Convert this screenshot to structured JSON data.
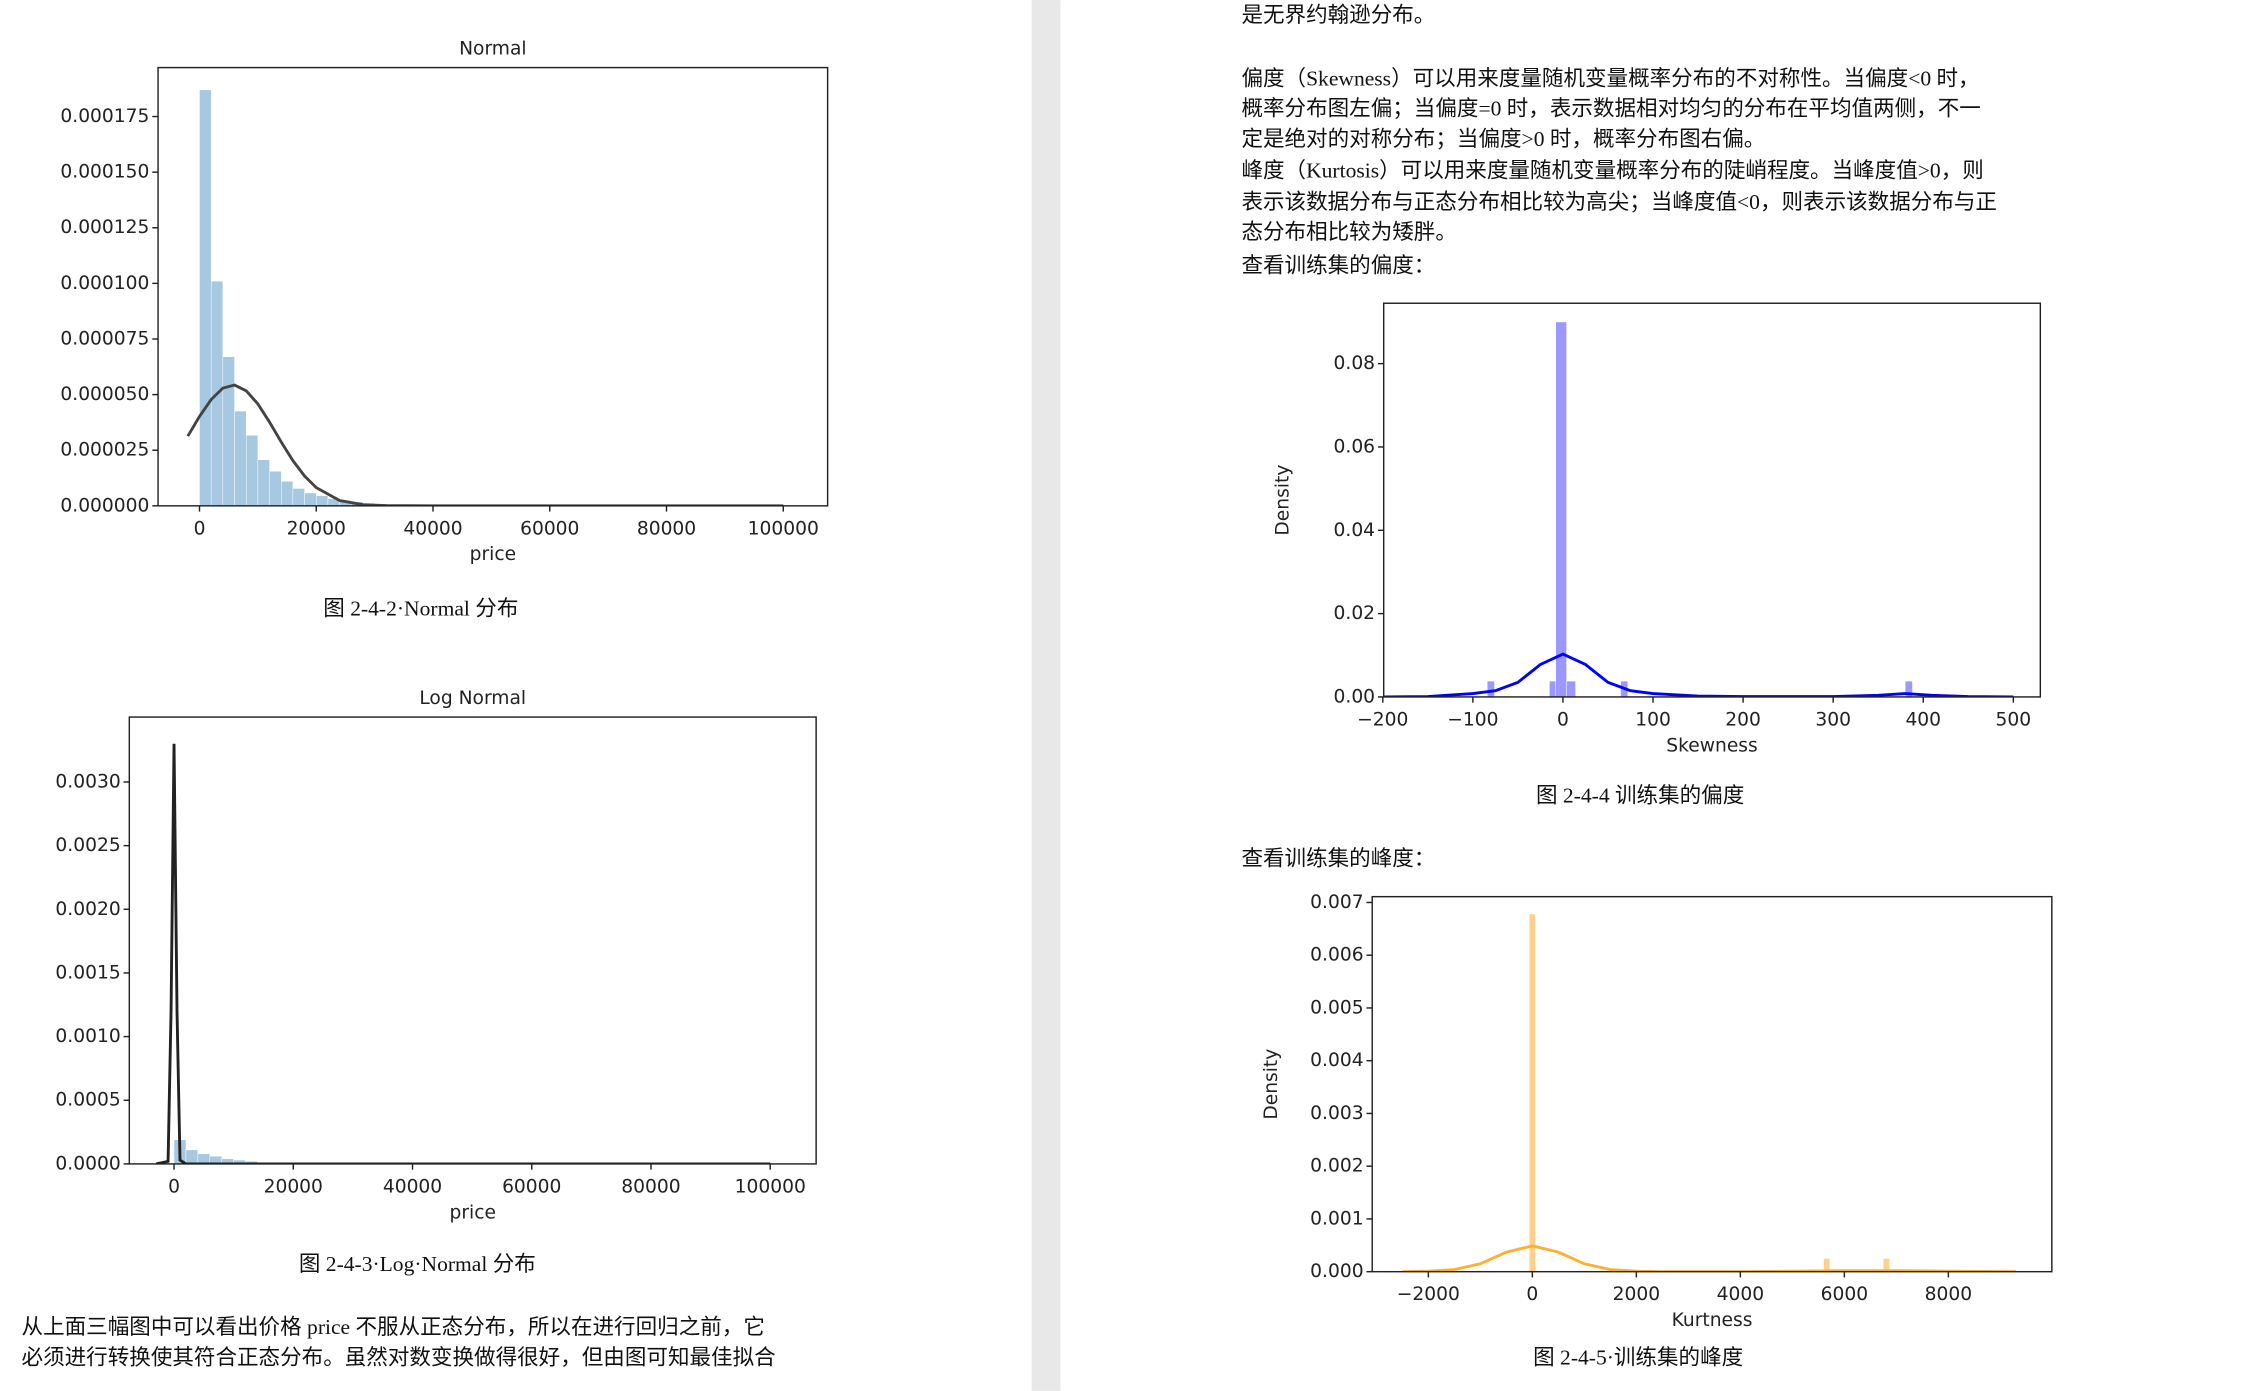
{
  "left_page": {
    "caption_1": "图 2-4-2·Normal 分布",
    "caption_2": "图 2-4-3·Log·Normal 分布",
    "paragraph": [
      "从上面三幅图中可以看出价格 price 不服从正态分布，所以在进行回归之前，它",
      "必须进行转换使其符合正态分布。虽然对数变换做得很好，但由图可知最佳拟合"
    ]
  },
  "right_page": {
    "intro": "是无界约翰逊分布。",
    "paragraph": [
      "偏度（Skewness）可以用来度量随机变量概率分布的不对称性。当偏度<0 时，",
      "概率分布图左偏；当偏度=0 时，表示数据相对均匀的分布在平均值两侧，不一",
      "定是绝对的对称分布；当偏度>0 时，概率分布图右偏。",
      "峰度（Kurtosis）可以用来度量随机变量概率分布的陡峭程度。当峰度值>0，则",
      "表示该数据分布与正态分布相比较为高尖；当峰度值<0，则表示该数据分布与正",
      "态分布相比较为矮胖。",
      "查看训练集的偏度："
    ],
    "caption_1": "图 2-4-4 训练集的偏度",
    "kurtosis_intro": "查看训练集的峰度：",
    "caption_2": "图 2-4-5·训练集的峰度"
  },
  "chart_data": [
    {
      "type": "histogram",
      "title": "Normal",
      "x_label": "price",
      "bins": [
        0,
        2000,
        4000,
        6000,
        8000,
        10000,
        12000,
        14000,
        16000,
        18000,
        20000,
        22000,
        24000,
        26000,
        28000,
        30000,
        32000
      ],
      "values": [
        0.000187,
        0.000101,
        6.7e-05,
        4.26e-05,
        3.17e-05,
        2.07e-05,
        1.55e-05,
        1.1e-05,
        7.8e-06,
        5.8e-06,
        4.5e-06,
        3.2e-06,
        2.4e-06,
        1.8e-06,
        1.2e-06,
        8e-07
      ],
      "color": "#a6c8e0",
      "curve": {
        "x": [
          -2000,
          0,
          2000,
          4000,
          6000,
          8000,
          10000,
          12000,
          14000,
          16000,
          18000,
          20000,
          24000,
          28000,
          32000,
          40000,
          60000,
          80000,
          100000
        ],
        "values": [
          3.13e-05,
          4.02e-05,
          4.78e-05,
          5.29e-05,
          5.43e-05,
          5.17e-05,
          4.58e-05,
          3.76e-05,
          2.87e-05,
          2.03e-05,
          1.34e-05,
          8.2e-06,
          2.4e-06,
          5e-07,
          1e-07,
          0,
          0,
          0,
          0
        ],
        "color": "#444444"
      },
      "xlim": [
        -7100,
        107600
      ],
      "ylim": [
        0,
        0.000197
      ],
      "xticks": [
        0,
        20000,
        40000,
        60000,
        80000,
        100000
      ],
      "yticks": [
        {
          "value": 0,
          "label": "0.000000"
        },
        {
          "value": 2.5e-05,
          "label": "0.000025"
        },
        {
          "value": 5e-05,
          "label": "0.000050"
        },
        {
          "value": 7.5e-05,
          "label": "0.000075"
        },
        {
          "value": 0.0001,
          "label": "0.000100"
        },
        {
          "value": 0.000125,
          "label": "0.000125"
        },
        {
          "value": 0.00015,
          "label": "0.000150"
        },
        {
          "value": 0.000175,
          "label": "0.000175"
        }
      ]
    },
    {
      "type": "histogram",
      "title": "Log Normal",
      "x_label": "price",
      "bins": [
        0,
        2000,
        4000,
        6000,
        8000,
        10000,
        12000,
        14000,
        16000
      ],
      "values": [
        0.00019,
        0.00011,
        8e-05,
        6e-05,
        4e-05,
        3e-05,
        2e-05,
        1e-05
      ],
      "color": "#a6c8e0",
      "curve": {
        "x": [
          -3000,
          -1000,
          -500,
          0,
          500,
          1000,
          2000,
          5000,
          20000,
          100000
        ],
        "values": [
          0,
          2e-05,
          0.0012,
          0.0033,
          0.0012,
          3e-05,
          0,
          0,
          0,
          0
        ],
        "color": "#222222"
      },
      "xlim": [
        -7500,
        107700
      ],
      "ylim": [
        0,
        0.00351
      ],
      "xticks": [
        0,
        20000,
        40000,
        60000,
        80000,
        100000
      ],
      "yticks": [
        {
          "value": 0,
          "label": "0.0000"
        },
        {
          "value": 0.0005,
          "label": "0.0005"
        },
        {
          "value": 0.001,
          "label": "0.0010"
        },
        {
          "value": 0.0015,
          "label": "0.0015"
        },
        {
          "value": 0.002,
          "label": "0.0020"
        },
        {
          "value": 0.0025,
          "label": "0.0025"
        },
        {
          "value": 0.003,
          "label": "0.0030"
        }
      ]
    },
    {
      "type": "histogram",
      "x_label": "Skewness",
      "y_label": "Density",
      "bins": [
        -84,
        -76,
        -15,
        -8,
        4,
        14,
        64,
        72,
        380,
        388
      ],
      "values": [
        0.0038,
        0,
        0.0038,
        0.09,
        0.0038,
        0,
        0.0038,
        0,
        0.0038
      ],
      "color": "#9999ff",
      "curve": {
        "x": [
          -200,
          -150,
          -100,
          -75,
          -50,
          -25,
          0,
          25,
          50,
          75,
          100,
          150,
          200,
          300,
          350,
          380,
          410,
          450,
          500
        ],
        "values": [
          0,
          0.0001,
          0.0008,
          0.0015,
          0.0035,
          0.0078,
          0.0103,
          0.0078,
          0.0035,
          0.0015,
          0.0008,
          0.0002,
          0.0001,
          0.0001,
          0.0004,
          0.0008,
          0.0004,
          0.0001,
          0
        ],
        "color": "#0000ff"
      },
      "xlim": [
        -199,
        530
      ],
      "ylim": [
        0,
        0.0945
      ],
      "xticks": [
        {
          "value": -200,
          "label": "−200"
        },
        {
          "value": -100,
          "label": "−100"
        },
        0,
        100,
        200,
        300,
        400,
        500
      ],
      "yticks": [
        {
          "value": 0,
          "label": "0.00"
        },
        {
          "value": 0.02,
          "label": "0.02"
        },
        {
          "value": 0.04,
          "label": "0.04"
        },
        {
          "value": 0.06,
          "label": "0.06"
        },
        {
          "value": 0.08,
          "label": "0.08"
        }
      ]
    },
    {
      "type": "histogram",
      "x_label": "Kurtness",
      "y_label": "Density",
      "bins": [
        -60,
        60,
        5600,
        5720,
        6750,
        6870
      ],
      "values": [
        0.00678,
        0,
        0.00025,
        0,
        0.00025
      ],
      "color": "#ffd08a",
      "curve": {
        "x": [
          -2500,
          -2000,
          -1500,
          -1000,
          -500,
          0,
          500,
          1000,
          1500,
          2000,
          2500,
          3000,
          4000,
          5000,
          6000,
          7000,
          8000,
          9300
        ],
        "values": [
          0,
          1e-05,
          4e-05,
          0.00015,
          0.00037,
          0.00049,
          0.00037,
          0.00015,
          4e-05,
          1e-05,
          0,
          0,
          0,
          1e-05,
          2e-05,
          2e-05,
          1e-05,
          0
        ],
        "color": "#ffb030"
      },
      "xlim": [
        -3080,
        9990
      ],
      "ylim": [
        0,
        0.00711
      ],
      "xticks": [
        {
          "value": -2000,
          "label": "−2000"
        },
        0,
        2000,
        4000,
        6000,
        8000
      ],
      "yticks": [
        {
          "value": 0,
          "label": "0.000"
        },
        0.001,
        0.002,
        0.003,
        0.004,
        0.005,
        0.006,
        0.007
      ]
    }
  ]
}
